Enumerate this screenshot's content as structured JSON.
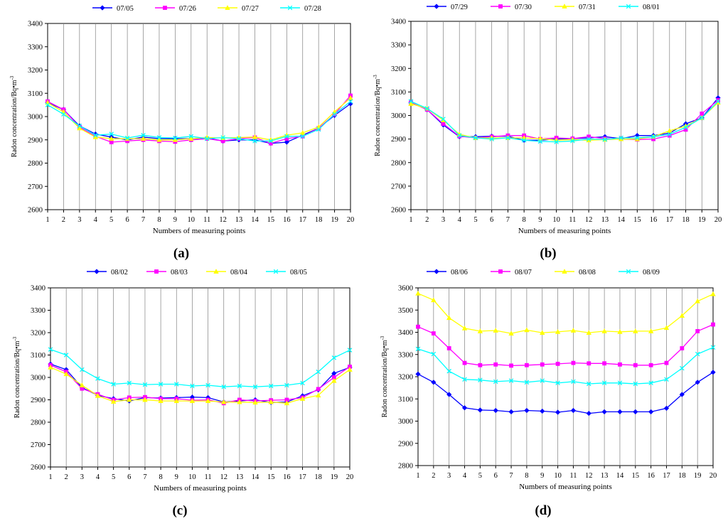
{
  "chart_data": [
    {
      "type": "line",
      "panel_label": "(a)",
      "panel_letter": "a",
      "xlabel": "Numbers of measuring points",
      "ylabel": "Radon concentration/Bq•m",
      "ylabel_sup": "-3",
      "categories": [
        "1",
        "2",
        "3",
        "4",
        "5",
        "6",
        "7",
        "8",
        "9",
        "10",
        "11",
        "12",
        "13",
        "14",
        "15",
        "16",
        "17",
        "18",
        "19",
        "20"
      ],
      "ylim": [
        2600,
        3400
      ],
      "yticks": [
        2600,
        2700,
        2800,
        2900,
        3000,
        3100,
        3200,
        3300,
        3400
      ],
      "grid": "vertical",
      "legend_position": "top",
      "series": [
        {
          "name": "07/05",
          "color": "#0000ff",
          "marker": "diamond",
          "values": [
            3060,
            3030,
            2960,
            2925,
            2912,
            2900,
            2912,
            2905,
            2905,
            2905,
            2908,
            2895,
            2900,
            2900,
            2885,
            2890,
            2920,
            2950,
            3005,
            3055
          ]
        },
        {
          "name": "07/26",
          "color": "#ff00ff",
          "marker": "square",
          "values": [
            3065,
            3030,
            2955,
            2915,
            2890,
            2895,
            2900,
            2895,
            2892,
            2900,
            2905,
            2895,
            2905,
            2910,
            2885,
            2905,
            2915,
            2950,
            3010,
            3090
          ]
        },
        {
          "name": "07/27",
          "color": "#ffff00",
          "marker": "triangle",
          "values": [
            3060,
            3020,
            2950,
            2912,
            2905,
            2905,
            2905,
            2900,
            2900,
            2905,
            2910,
            2908,
            2910,
            2912,
            2900,
            2920,
            2930,
            2955,
            3020,
            3080
          ]
        },
        {
          "name": "07/28",
          "color": "#00ffff",
          "marker": "x",
          "values": [
            3050,
            3010,
            2960,
            2920,
            2925,
            2908,
            2920,
            2910,
            2908,
            2915,
            2905,
            2910,
            2905,
            2895,
            2895,
            2915,
            2915,
            2945,
            3010,
            3065
          ]
        }
      ]
    },
    {
      "type": "line",
      "panel_label": "(b)",
      "panel_letter": "b",
      "xlabel": "Numbers of measuring points",
      "ylabel": "Radon concentration/Bq•m",
      "ylabel_sup": "-3",
      "categories": [
        "1",
        "2",
        "3",
        "4",
        "5",
        "6",
        "7",
        "8",
        "9",
        "10",
        "11",
        "12",
        "13",
        "14",
        "15",
        "16",
        "17",
        "18",
        "19",
        "20"
      ],
      "ylim": [
        2600,
        3400
      ],
      "yticks": [
        2600,
        2700,
        2800,
        2900,
        3000,
        3100,
        3200,
        3300,
        3400
      ],
      "grid": "vertical",
      "legend_position": "top",
      "series": [
        {
          "name": "07/29",
          "color": "#0000ff",
          "marker": "diamond",
          "values": [
            3055,
            3025,
            2960,
            2910,
            2910,
            2912,
            2912,
            2895,
            2895,
            2900,
            2902,
            2905,
            2910,
            2902,
            2915,
            2915,
            2925,
            2965,
            2990,
            3075
          ]
        },
        {
          "name": "07/30",
          "color": "#ff00ff",
          "marker": "square",
          "values": [
            3055,
            3025,
            2965,
            2912,
            2905,
            2910,
            2915,
            2915,
            2900,
            2905,
            2902,
            2910,
            2902,
            2900,
            2898,
            2900,
            2915,
            2940,
            3008,
            3065
          ]
        },
        {
          "name": "07/31",
          "color": "#ffff00",
          "marker": "triangle",
          "values": [
            3050,
            3030,
            2980,
            2920,
            2905,
            2905,
            2905,
            2905,
            2902,
            2895,
            2898,
            2895,
            2898,
            2900,
            2900,
            2910,
            2935,
            2955,
            2990,
            3055
          ]
        },
        {
          "name": "08/01",
          "color": "#00ffff",
          "marker": "x",
          "values": [
            3060,
            3030,
            2985,
            2915,
            2905,
            2900,
            2905,
            2895,
            2890,
            2888,
            2892,
            2900,
            2898,
            2905,
            2905,
            2910,
            2920,
            2950,
            2990,
            3060
          ]
        }
      ]
    },
    {
      "type": "line",
      "panel_label": "(c)",
      "panel_letter": "c",
      "xlabel": "Numbers of measuring points",
      "ylabel": "Radon concentration/Bq•m",
      "ylabel_sup": "-3",
      "categories": [
        "1",
        "2",
        "3",
        "4",
        "5",
        "6",
        "7",
        "8",
        "9",
        "10",
        "11",
        "12",
        "13",
        "14",
        "15",
        "16",
        "17",
        "18",
        "19",
        "20"
      ],
      "ylim": [
        2600,
        3400
      ],
      "yticks": [
        2600,
        2700,
        2800,
        2900,
        3000,
        3100,
        3200,
        3300,
        3400
      ],
      "grid": "vertical",
      "legend_position": "top",
      "series": [
        {
          "name": "08/02",
          "color": "#0000ff",
          "marker": "diamond",
          "values": [
            3060,
            3035,
            2955,
            2920,
            2905,
            2895,
            2910,
            2908,
            2910,
            2912,
            2910,
            2890,
            2895,
            2900,
            2888,
            2890,
            2918,
            2945,
            3018,
            3045
          ]
        },
        {
          "name": "08/03",
          "color": "#ff00ff",
          "marker": "square",
          "values": [
            3055,
            3025,
            2950,
            2925,
            2900,
            2910,
            2912,
            2905,
            2905,
            2898,
            2900,
            2885,
            2900,
            2895,
            2898,
            2900,
            2910,
            2948,
            3000,
            3048
          ]
        },
        {
          "name": "08/04",
          "color": "#ffff00",
          "marker": "triangle",
          "values": [
            3045,
            3015,
            2965,
            2918,
            2892,
            2900,
            2900,
            2895,
            2895,
            2895,
            2895,
            2890,
            2890,
            2888,
            2890,
            2885,
            2905,
            2920,
            2985,
            3035
          ]
        },
        {
          "name": "08/05",
          "color": "#00ffff",
          "marker": "x",
          "values": [
            3125,
            3100,
            3035,
            2995,
            2970,
            2975,
            2968,
            2970,
            2970,
            2962,
            2965,
            2958,
            2962,
            2958,
            2962,
            2965,
            2975,
            3025,
            3088,
            3122
          ]
        }
      ]
    },
    {
      "type": "line",
      "panel_label": "(d)",
      "panel_letter": "d",
      "xlabel": "Numbers of measuring points",
      "ylabel": "Radon concentration/Bq•m",
      "ylabel_sup": "-3",
      "categories": [
        "1",
        "2",
        "3",
        "4",
        "5",
        "6",
        "7",
        "8",
        "9",
        "10",
        "11",
        "12",
        "13",
        "14",
        "15",
        "16",
        "17",
        "18",
        "19",
        "20"
      ],
      "ylim": [
        2800,
        3600
      ],
      "yticks": [
        2800,
        2900,
        3000,
        3100,
        3200,
        3300,
        3400,
        3500,
        3600
      ],
      "grid": "vertical",
      "legend_position": "top",
      "series": [
        {
          "name": "08/06",
          "color": "#0000ff",
          "marker": "diamond",
          "values": [
            3212,
            3175,
            3120,
            3060,
            3050,
            3048,
            3042,
            3048,
            3045,
            3040,
            3048,
            3035,
            3042,
            3042,
            3042,
            3042,
            3058,
            3120,
            3175,
            3220
          ]
        },
        {
          "name": "08/07",
          "color": "#ff00ff",
          "marker": "square",
          "values": [
            3425,
            3395,
            3328,
            3262,
            3252,
            3255,
            3250,
            3252,
            3255,
            3258,
            3262,
            3260,
            3260,
            3255,
            3252,
            3252,
            3262,
            3328,
            3405,
            3435
          ]
        },
        {
          "name": "08/08",
          "color": "#ffff00",
          "marker": "triangle",
          "values": [
            3575,
            3545,
            3465,
            3418,
            3405,
            3408,
            3395,
            3410,
            3398,
            3402,
            3408,
            3398,
            3405,
            3402,
            3405,
            3405,
            3420,
            3475,
            3540,
            3572
          ]
        },
        {
          "name": "08/09",
          "color": "#00ffff",
          "marker": "x",
          "values": [
            3325,
            3302,
            3225,
            3188,
            3185,
            3178,
            3182,
            3175,
            3182,
            3172,
            3178,
            3168,
            3172,
            3172,
            3168,
            3172,
            3188,
            3238,
            3302,
            3332
          ]
        }
      ]
    }
  ]
}
